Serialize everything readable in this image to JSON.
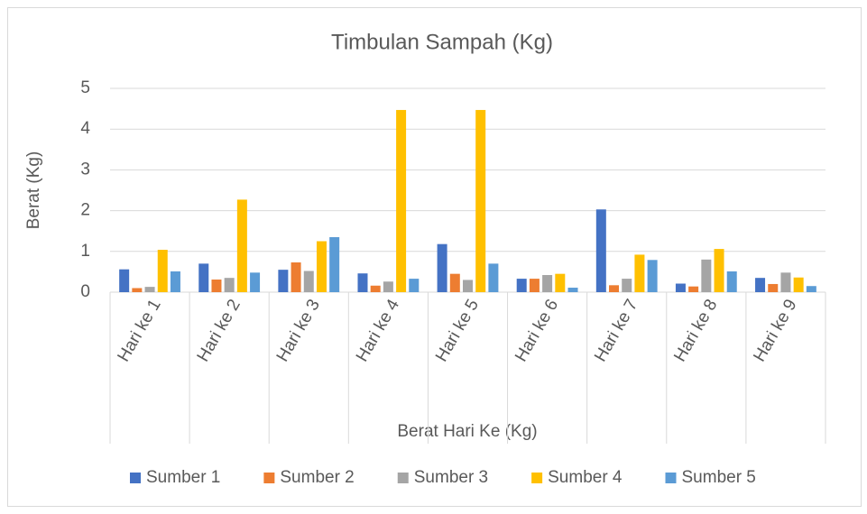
{
  "chart_data": {
    "type": "bar",
    "title": "Timbulan Sampah (Kg)",
    "x_label": "Berat Hari Ke (Kg)",
    "y_label": "Berat (Kg)",
    "categories": [
      "Hari ke 1",
      "Hari ke 2",
      "Hari ke 3",
      "Hari ke 4",
      "Hari ke 5",
      "Hari ke 6",
      "Hari ke 7",
      "Hari ke 8",
      "Hari ke 9"
    ],
    "series": [
      {
        "name": "Sumber 1",
        "color": "#4472c4",
        "values": [
          0.56,
          0.7,
          0.55,
          0.46,
          1.18,
          0.33,
          2.03,
          0.21,
          0.35
        ]
      },
      {
        "name": "Sumber 2",
        "color": "#ed7d31",
        "values": [
          0.1,
          0.31,
          0.73,
          0.16,
          0.45,
          0.33,
          0.17,
          0.14,
          0.2
        ]
      },
      {
        "name": "Sumber 3",
        "color": "#a5a5a5",
        "values": [
          0.13,
          0.35,
          0.52,
          0.26,
          0.3,
          0.42,
          0.33,
          0.8,
          0.48
        ]
      },
      {
        "name": "Sumber 4",
        "color": "#ffc000",
        "values": [
          1.04,
          2.27,
          1.25,
          4.47,
          4.47,
          0.45,
          0.92,
          1.06,
          0.36
        ]
      },
      {
        "name": "Sumber 5",
        "color": "#5b9bd5",
        "values": [
          0.51,
          0.48,
          1.35,
          0.33,
          0.7,
          0.11,
          0.79,
          0.51,
          0.15
        ]
      }
    ],
    "ylim": [
      0,
      5
    ],
    "yticks": [
      0,
      1,
      2,
      3,
      4,
      5
    ],
    "grid": true,
    "legend": "bottom"
  }
}
